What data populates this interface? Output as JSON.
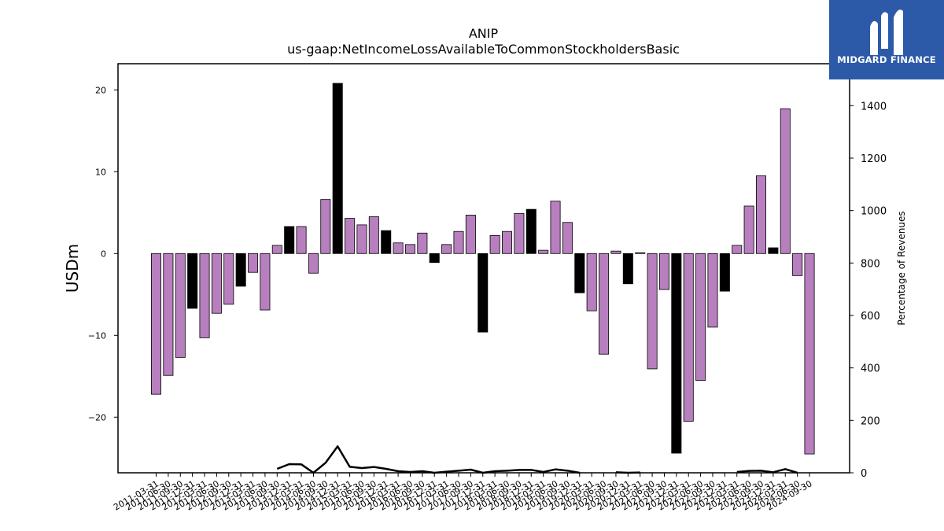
{
  "chart_data": {
    "type": "bar",
    "title": "ANIP",
    "subtitle": "us-gaap:NetIncomeLossAvailableToCommonStockholdersBasic",
    "ylabel": "USDm",
    "y2label": "Percentage of Revenues",
    "ylim": [
      -26.8,
      23.2
    ],
    "y2lim": [
      0,
      1560
    ],
    "yticks": [
      20,
      10,
      0,
      -10,
      -20
    ],
    "y2ticks": [
      0,
      200,
      400,
      600,
      800,
      1000,
      1200,
      1400
    ],
    "categories": [
      "2011-03-31",
      "2011-06-30",
      "2011-09-30",
      "2011-12-31",
      "2012-03-31",
      "2012-06-30",
      "2012-09-30",
      "2012-12-31",
      "2013-03-31",
      "2013-06-30",
      "2013-09-30",
      "2013-12-31",
      "2014-03-31",
      "2014-06-30",
      "2014-09-30",
      "2014-12-31",
      "2015-03-31",
      "2015-06-30",
      "2015-09-30",
      "2015-12-31",
      "2016-03-31",
      "2016-06-30",
      "2016-09-30",
      "2016-12-31",
      "2017-03-31",
      "2017-06-30",
      "2017-09-30",
      "2017-12-31",
      "2018-03-31",
      "2018-06-30",
      "2018-09-30",
      "2018-12-31",
      "2019-03-31",
      "2019-06-30",
      "2019-09-30",
      "2019-12-31",
      "2020-03-31",
      "2020-06-30",
      "2020-09-30",
      "2020-12-31",
      "2021-03-31",
      "2021-06-30",
      "2021-09-30",
      "2021-12-31",
      "2022-03-31",
      "2022-06-30",
      "2022-09-30",
      "2022-12-31",
      "2023-03-31",
      "2023-06-30",
      "2023-09-30",
      "2023-12-31",
      "2024-03-31",
      "2024-06-30",
      "2024-09-30"
    ],
    "values": [
      -17.2,
      -14.9,
      -12.7,
      -6.7,
      -10.3,
      -7.3,
      -6.2,
      -4.0,
      -2.3,
      -6.9,
      1.0,
      3.3,
      3.3,
      -2.4,
      6.6,
      20.8,
      4.3,
      3.5,
      4.5,
      2.8,
      1.3,
      1.1,
      2.5,
      -1.1,
      1.1,
      2.7,
      4.7,
      -9.6,
      2.2,
      2.7,
      4.9,
      5.4,
      0.4,
      6.4,
      3.8,
      -4.8,
      -7.0,
      -12.3,
      0.3,
      -3.7,
      0.1,
      -14.1,
      -4.4,
      -24.4,
      -20.5,
      -15.5,
      -9.0,
      -4.6,
      1.0,
      5.8,
      9.5,
      0.7,
      17.7,
      -2.7,
      -24.5
    ],
    "bar_style": [
      "q",
      "q",
      "q",
      "fy",
      "q",
      "q",
      "q",
      "fy",
      "q",
      "q",
      "q",
      "fy",
      "q",
      "q",
      "q",
      "fy",
      "q",
      "q",
      "q",
      "fy",
      "q",
      "q",
      "q",
      "fy",
      "q",
      "q",
      "q",
      "fy",
      "q",
      "q",
      "q",
      "fy",
      "q",
      "q",
      "q",
      "fy",
      "q",
      "q",
      "q",
      "fy",
      "q",
      "q",
      "q",
      "fy",
      "q",
      "q",
      "q",
      "fy",
      "q",
      "q",
      "q",
      "fy",
      "q",
      "q",
      "q"
    ],
    "pct_of_revenues": [
      null,
      null,
      null,
      null,
      null,
      null,
      null,
      null,
      null,
      null,
      15,
      33,
      32,
      0,
      38,
      101,
      23,
      18,
      22,
      15,
      6,
      3,
      6,
      0,
      4,
      8,
      12,
      0,
      6,
      8,
      11,
      11,
      3,
      13,
      8,
      0,
      null,
      null,
      2,
      0,
      1,
      null,
      null,
      null,
      null,
      null,
      null,
      null,
      3,
      7,
      8,
      2,
      14,
      0,
      null
    ],
    "colors": {
      "bar_q": "#b87fbf",
      "bar_fy": "#000000",
      "line": "#000000"
    },
    "grid": false
  },
  "logo": {
    "text": "MIDGARD FINANCE"
  }
}
